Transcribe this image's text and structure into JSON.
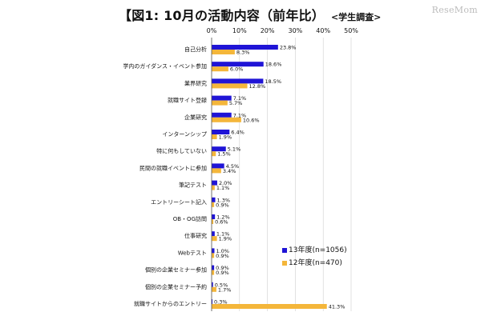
{
  "title": {
    "main": "【図1:  10月の活動内容（前年比）",
    "sub": "<学生調査>"
  },
  "watermark": "ReseMom",
  "colors": {
    "series_2013": "#1f14d6",
    "series_2012": "#f4b63a"
  },
  "chart_data": {
    "type": "bar",
    "orientation": "horizontal",
    "xlim": [
      0,
      50
    ],
    "xticks": [
      "0%",
      "10%",
      "20%",
      "30%",
      "40%",
      "50%"
    ],
    "grid": true,
    "legend_placement": "lower-right",
    "categories": [
      "自己分析",
      "学内のガイダンス・イベント参加",
      "業界研究",
      "就職サイト登録",
      "企業研究",
      "インターンシップ",
      "特に何もしていない",
      "民間の就職イベントに参加",
      "筆記テスト",
      "エントリーシート記入",
      "OB・OG訪問",
      "仕事研究",
      "Webテスト",
      "個別の企業セミナー参加",
      "個別の企業セミナー予約",
      "就職サイトからのエントリー"
    ],
    "series": [
      {
        "name": "13年度(n=1056)",
        "values": [
          23.8,
          18.6,
          18.5,
          7.1,
          7.1,
          6.4,
          5.1,
          4.5,
          2.0,
          1.3,
          1.2,
          1.1,
          1.0,
          0.9,
          0.5,
          0.3
        ],
        "labels": [
          "23.8%",
          "18.6%",
          "18.5%",
          "7.1%",
          "7.1%",
          "6.4%",
          "5.1%",
          "4.5%",
          "2.0%",
          "1.3%",
          "1.2%",
          "1.1%",
          "1.0%",
          "0.9%",
          "0.5%",
          "0.3%"
        ]
      },
      {
        "name": "12年度(n=470)",
        "values": [
          8.3,
          6.0,
          12.8,
          5.7,
          10.6,
          1.9,
          1.5,
          3.4,
          1.1,
          0.9,
          0.6,
          1.9,
          0.9,
          0.9,
          1.7,
          41.3
        ],
        "labels": [
          "8.3%",
          "6.0%",
          "12.8%",
          "5.7%",
          "10.6%",
          "1.9%",
          "1.5%",
          "3.4%",
          "1.1%",
          "0.9%",
          "0.6%",
          "1.9%",
          "0.9%",
          "0.9%",
          "1.7%",
          "41.3%"
        ]
      }
    ]
  }
}
